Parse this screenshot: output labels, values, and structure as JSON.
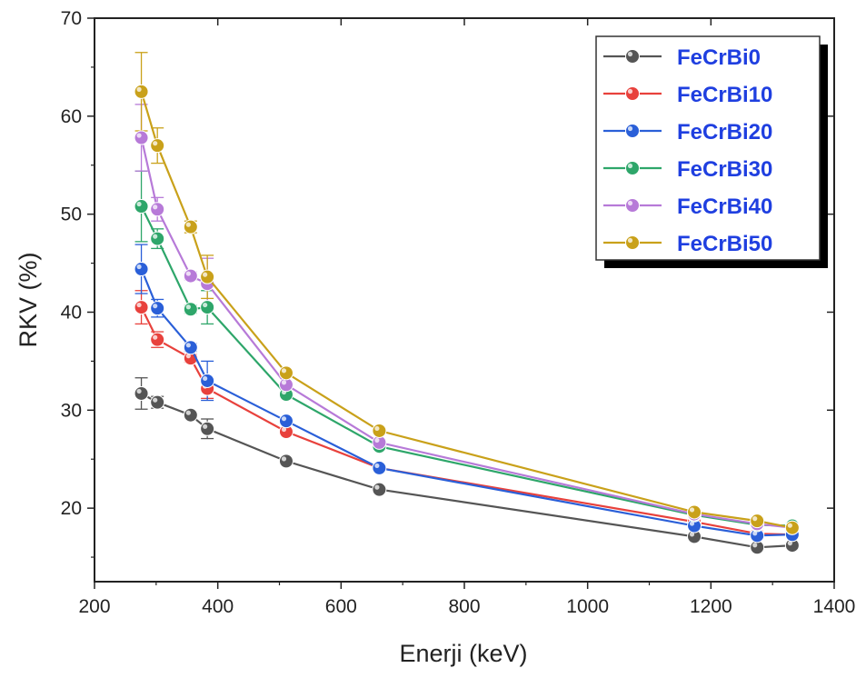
{
  "chart_data": {
    "type": "line",
    "title": "",
    "xlabel": "Enerji (keV)",
    "ylabel": "RKV (%)",
    "xlim": [
      200,
      1400
    ],
    "ylim": [
      12.5,
      70
    ],
    "x_ticks": [
      200,
      400,
      600,
      800,
      1000,
      1200,
      1400
    ],
    "y_ticks": [
      20,
      30,
      40,
      50,
      60,
      70
    ],
    "grid": false,
    "legend_position": "top-right",
    "legend_text_color": "#1f3fe0",
    "x": [
      276,
      302,
      356,
      383,
      511,
      662,
      1173,
      1275,
      1332
    ],
    "series": [
      {
        "name": "FeCrBi0",
        "color": "#555555",
        "values": [
          31.7,
          30.8,
          29.5,
          28.1,
          24.8,
          21.9,
          17.1,
          16.0,
          16.2
        ],
        "errors": [
          1.6,
          0.6,
          0.3,
          1.0,
          0.3,
          0.3,
          0.3,
          0.3,
          0.3
        ]
      },
      {
        "name": "FeCrBi10",
        "color": "#e8413c",
        "values": [
          40.5,
          37.2,
          35.3,
          32.2,
          27.8,
          24.1,
          18.6,
          17.4,
          17.3
        ],
        "errors": [
          1.7,
          0.8,
          0.4,
          1.0,
          0.3,
          0.3,
          0.3,
          0.3,
          0.3
        ]
      },
      {
        "name": "FeCrBi20",
        "color": "#2a5fd8",
        "values": [
          44.4,
          40.4,
          36.4,
          33.0,
          28.9,
          24.1,
          18.2,
          17.2,
          17.3
        ],
        "errors": [
          2.5,
          0.9,
          0.4,
          2.0,
          0.3,
          0.3,
          0.3,
          0.3,
          0.3
        ]
      },
      {
        "name": "FeCrBi30",
        "color": "#2ea66a",
        "values": [
          50.8,
          47.5,
          40.3,
          40.5,
          31.6,
          26.3,
          19.3,
          18.3,
          18.2
        ],
        "errors": [
          3.6,
          1.0,
          0.4,
          1.7,
          0.3,
          0.3,
          0.3,
          0.3,
          0.3
        ]
      },
      {
        "name": "FeCrBi40",
        "color": "#b77ad8",
        "values": [
          57.8,
          50.5,
          43.7,
          42.9,
          32.6,
          26.7,
          19.4,
          18.4,
          18.0
        ],
        "errors": [
          3.4,
          1.2,
          0.4,
          2.6,
          0.3,
          0.3,
          0.3,
          0.3,
          0.3
        ]
      },
      {
        "name": "FeCrBi50",
        "color": "#c9a11a",
        "values": [
          62.5,
          57.0,
          48.7,
          43.6,
          33.8,
          27.9,
          19.6,
          18.7,
          18.0
        ],
        "errors": [
          4.0,
          1.8,
          0.6,
          2.2,
          0.3,
          0.3,
          0.3,
          0.3,
          0.3
        ]
      }
    ]
  }
}
